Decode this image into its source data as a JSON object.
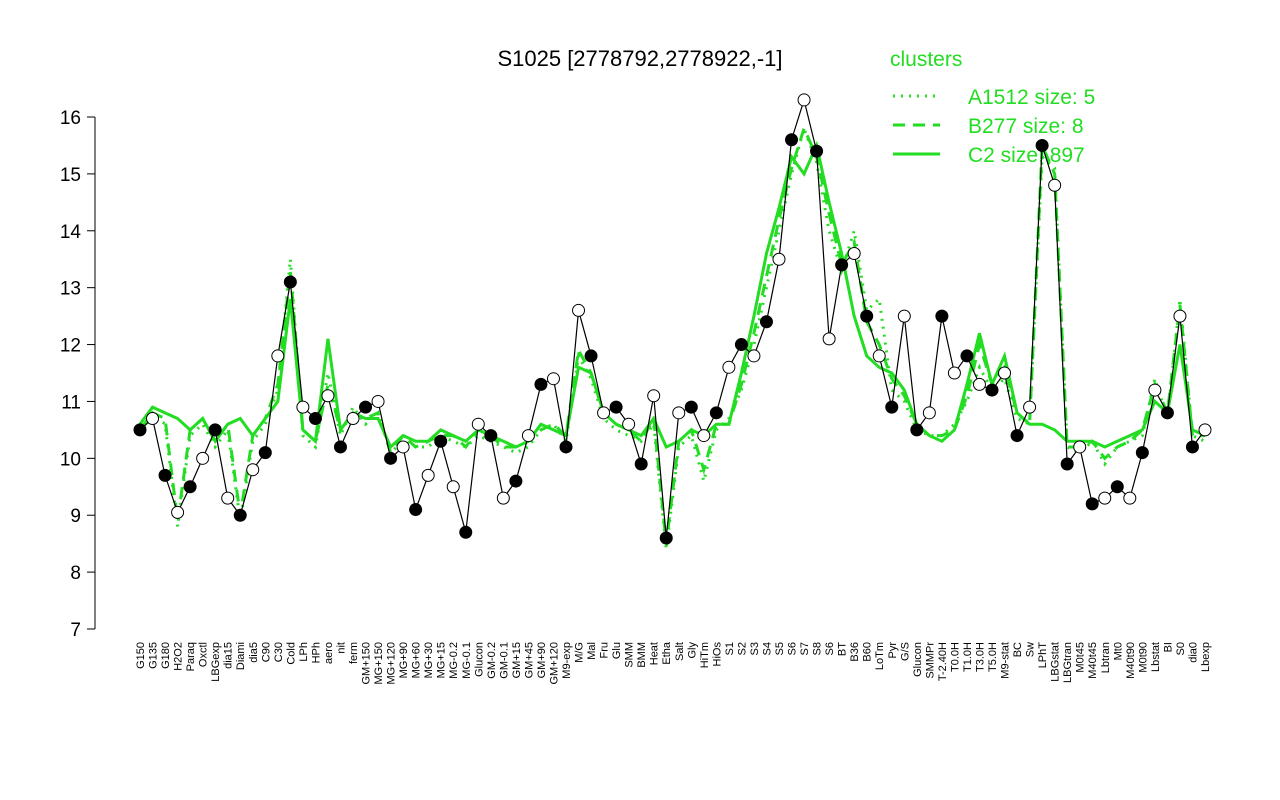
{
  "chart_data": {
    "type": "line",
    "title": "S1025 [2778792,2778922,-1]",
    "legend_title": "clusters",
    "categories": [
      "G150",
      "G135",
      "G180",
      "H2O2",
      "Paraq",
      "Oxctl",
      "LBGexp",
      "dia15",
      "Diami",
      "dia5",
      "C90",
      "C30",
      "Cold",
      "LPh",
      "HPh",
      "aero",
      "nit",
      "ferm",
      "GM+150",
      "MG+150",
      "MG+120",
      "MG+90",
      "MG+60",
      "MG+30",
      "MG+15",
      "MG-0.2",
      "MG-0.1",
      "Glucon",
      "GM-0.2",
      "GM-0.1",
      "GM+15",
      "GM+45",
      "GM+90",
      "GM+120",
      "M9-exp",
      "M/G",
      "Mal",
      "Fru",
      "Glu",
      "SMM",
      "BMM",
      "Heat",
      "Etha",
      "Salt",
      "Gly",
      "HiTm",
      "HiOs",
      "S1",
      "S2",
      "S3",
      "S4",
      "S5",
      "S6",
      "S7",
      "S8",
      "S6",
      "BT",
      "B36",
      "B60",
      "LoTm",
      "Pyr",
      "G/S",
      "Glucon",
      "SMMPr",
      "T-2.40H",
      "T0.0H",
      "T1.0H",
      "T3.0H",
      "T5.0H",
      "M9-stat",
      "BC",
      "Sw",
      "LPhT",
      "LBGstat",
      "LBGtran",
      "M0t45",
      "M40t45",
      "Lbtran",
      "Mt0",
      "M40t90",
      "M0t90",
      "Lbstat",
      "BI",
      "S0",
      "dia0",
      "Lbexp"
    ],
    "values": [
      10.5,
      10.7,
      9.7,
      9.05,
      9.5,
      10.0,
      10.5,
      9.3,
      9.0,
      9.8,
      10.1,
      11.8,
      13.1,
      10.9,
      10.7,
      11.1,
      10.2,
      10.7,
      10.9,
      11.0,
      10.0,
      10.2,
      9.1,
      9.7,
      10.3,
      9.5,
      8.7,
      10.6,
      10.4,
      9.3,
      9.6,
      10.4,
      11.3,
      11.4,
      10.2,
      12.6,
      11.8,
      10.8,
      10.9,
      10.6,
      9.9,
      11.1,
      8.6,
      10.8,
      10.9,
      10.4,
      10.8,
      11.6,
      12.0,
      11.8,
      12.4,
      13.5,
      15.6,
      16.3,
      15.4,
      12.1,
      13.4,
      13.6,
      12.5,
      11.8,
      10.9,
      12.5,
      10.5,
      10.8,
      12.5,
      11.5,
      11.8,
      11.3,
      11.2,
      11.5,
      10.4,
      10.9,
      15.5,
      14.8,
      9.9,
      10.2,
      9.2,
      9.3,
      9.5,
      9.3,
      10.1,
      11.2,
      10.8,
      12.5,
      10.2,
      10.5
    ],
    "color": "#000000",
    "series": [
      {
        "name": "A1512 size: 5",
        "color": "#22dd22",
        "dash": "dotted",
        "values": [
          10.4,
          10.8,
          10.6,
          8.8,
          10.4,
          10.6,
          10.2,
          10.5,
          8.9,
          10.3,
          10.6,
          11.2,
          13.5,
          10.4,
          10.2,
          11.5,
          10.4,
          10.9,
          10.6,
          10.8,
          10.1,
          10.3,
          10.2,
          10.2,
          10.4,
          10.3,
          10.2,
          10.4,
          10.3,
          10.2,
          10.1,
          10.2,
          10.5,
          10.6,
          10.3,
          11.8,
          11.4,
          10.7,
          10.5,
          10.4,
          10.3,
          10.6,
          8.4,
          10.2,
          10.4,
          9.6,
          10.5,
          10.7,
          11.2,
          12.0,
          13.0,
          14.0,
          15.0,
          15.8,
          15.2,
          14.0,
          13.3,
          14.0,
          12.6,
          12.8,
          11.2,
          11.0,
          10.5,
          10.4,
          10.4,
          10.6,
          11.0,
          11.6,
          11.2,
          11.4,
          10.7,
          10.6,
          15.3,
          15.1,
          10.2,
          10.1,
          10.3,
          9.9,
          10.2,
          10.3,
          10.4,
          11.4,
          10.7,
          12.8,
          10.4,
          10.3
        ]
      },
      {
        "name": "B277 size: 8",
        "color": "#22dd22",
        "dash": "dashed",
        "values": [
          10.5,
          10.8,
          10.7,
          8.9,
          10.5,
          10.7,
          10.3,
          10.6,
          9.0,
          10.4,
          10.7,
          11.3,
          13.3,
          10.5,
          10.3,
          11.3,
          10.5,
          10.8,
          10.7,
          10.8,
          10.1,
          10.4,
          10.2,
          10.3,
          10.4,
          10.4,
          10.2,
          10.5,
          10.4,
          10.2,
          10.2,
          10.3,
          10.5,
          10.6,
          10.4,
          11.9,
          11.5,
          10.8,
          10.6,
          10.5,
          10.3,
          10.7,
          8.5,
          10.3,
          10.5,
          9.8,
          10.6,
          10.6,
          11.3,
          12.2,
          13.2,
          14.2,
          15.1,
          15.8,
          15.3,
          14.3,
          13.4,
          13.8,
          12.4,
          12.0,
          11.4,
          11.1,
          10.6,
          10.4,
          10.4,
          10.5,
          11.1,
          12.0,
          11.3,
          11.6,
          10.8,
          10.6,
          15.5,
          15.0,
          10.2,
          10.2,
          10.3,
          10.0,
          10.2,
          10.3,
          10.5,
          11.3,
          10.8,
          12.7,
          10.4,
          10.4
        ]
      },
      {
        "name": "C2 size: 897",
        "color": "#22dd22",
        "dash": "solid",
        "values": [
          10.6,
          10.9,
          10.8,
          10.7,
          10.5,
          10.7,
          10.3,
          10.6,
          10.7,
          10.4,
          10.7,
          11.0,
          12.8,
          10.5,
          10.3,
          12.1,
          10.5,
          10.8,
          10.7,
          10.7,
          10.2,
          10.4,
          10.3,
          10.3,
          10.5,
          10.4,
          10.3,
          10.5,
          10.4,
          10.3,
          10.2,
          10.3,
          10.6,
          10.5,
          10.4,
          11.6,
          11.5,
          10.8,
          10.6,
          10.5,
          10.4,
          10.7,
          10.2,
          10.3,
          10.5,
          10.4,
          10.6,
          10.6,
          11.5,
          12.5,
          13.6,
          14.4,
          15.3,
          15.0,
          15.5,
          14.5,
          13.6,
          12.5,
          11.8,
          11.6,
          11.5,
          11.2,
          10.6,
          10.4,
          10.3,
          10.5,
          11.3,
          12.2,
          11.3,
          11.8,
          10.8,
          10.6,
          10.6,
          10.5,
          10.3,
          10.3,
          10.3,
          10.2,
          10.3,
          10.4,
          10.5,
          11.0,
          10.8,
          12.0,
          10.5,
          10.4
        ]
      }
    ],
    "ylim": [
      7,
      16
    ],
    "yticks": [
      7,
      8,
      9,
      10,
      11,
      12,
      13,
      14,
      15,
      16
    ]
  }
}
